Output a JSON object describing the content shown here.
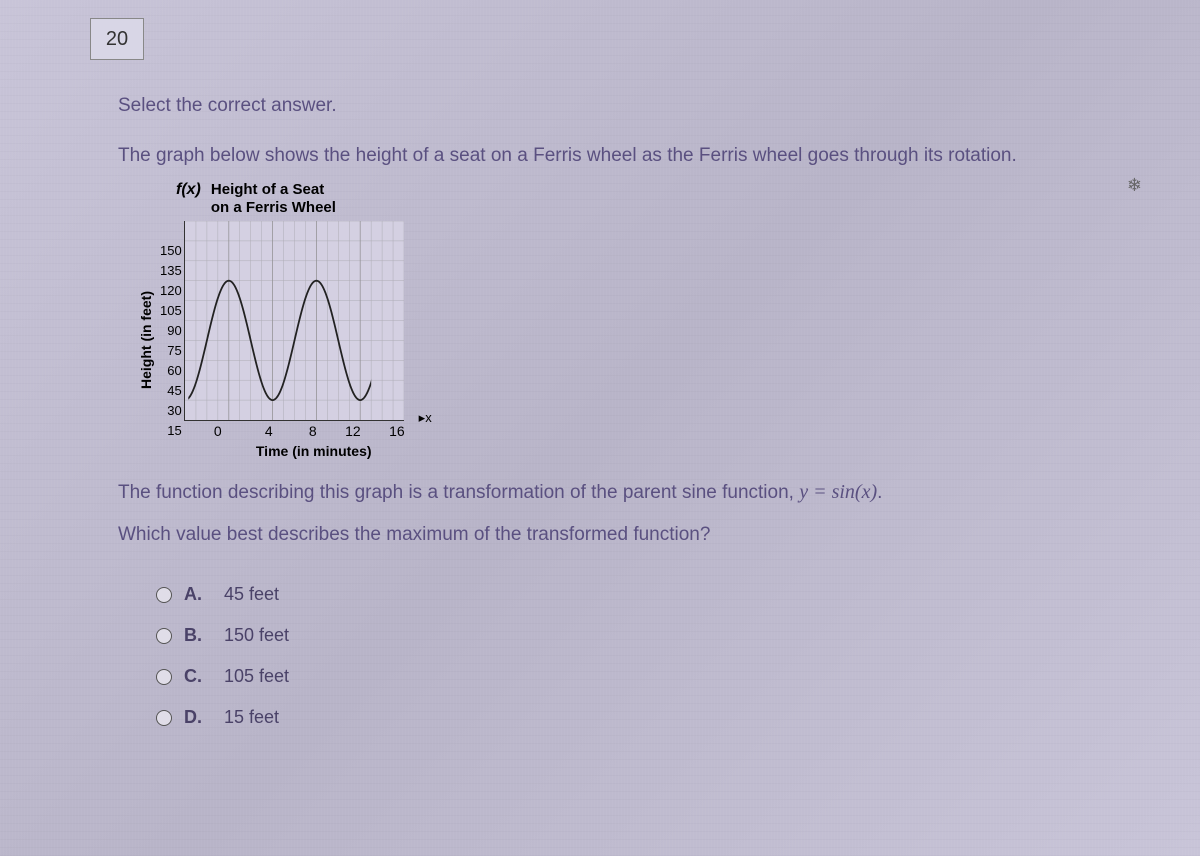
{
  "question_number": "20",
  "prompt": "Select the correct answer.",
  "description": "The graph below shows the height of a seat on a Ferris wheel as the Ferris wheel goes through its rotation.",
  "chart": {
    "fx_label": "f(x)",
    "title_line1": "Height of a Seat",
    "title_line2": "on a Ferris Wheel",
    "y_axis_label": "Height (in feet)",
    "x_axis_label": "Time (in minutes)",
    "y_ticks": [
      "150",
      "135",
      "120",
      "105",
      "90",
      "75",
      "60",
      "45",
      "30",
      "15"
    ],
    "x_ticks": [
      "0",
      "4",
      "8",
      "12",
      "16"
    ],
    "x_arrow_label": "x",
    "ylim": [
      0,
      150
    ],
    "xlim": [
      0,
      20
    ],
    "curve_min": 15,
    "curve_max": 105,
    "period": 8,
    "start_x": 0,
    "grid_color": "#888",
    "curve_color": "#222",
    "background": "#d4d0e2"
  },
  "post_text_prefix": "The function describing this graph is a transformation of the parent sine function, ",
  "post_text_formula": "y  =  sin(x)",
  "post_text_suffix": ".",
  "question_text": "Which value best describes the maximum of the transformed function?",
  "options": [
    {
      "letter": "A.",
      "text": "45 feet"
    },
    {
      "letter": "B.",
      "text": "150 feet"
    },
    {
      "letter": "C.",
      "text": "105 feet"
    },
    {
      "letter": "D.",
      "text": "15 feet"
    }
  ]
}
